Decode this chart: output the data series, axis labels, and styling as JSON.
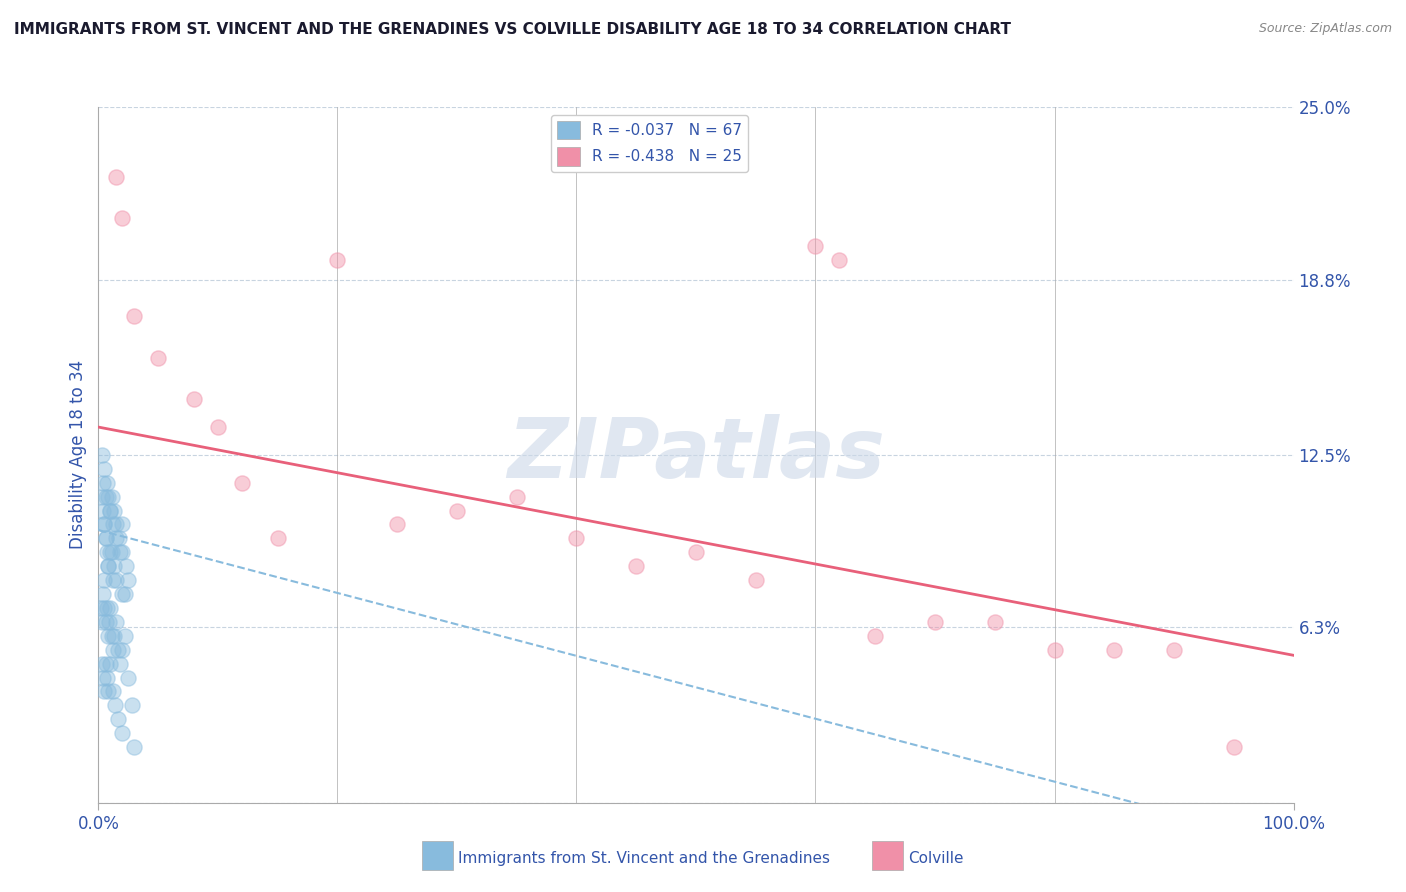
{
  "title": "IMMIGRANTS FROM ST. VINCENT AND THE GRENADINES VS COLVILLE DISABILITY AGE 18 TO 34 CORRELATION CHART",
  "source_text": "Source: ZipAtlas.com",
  "ylabel": "Disability Age 18 to 34",
  "xlim": [
    0.0,
    100.0
  ],
  "ylim": [
    0.0,
    25.0
  ],
  "yticks": [
    0.0,
    6.3,
    12.5,
    18.8,
    25.0
  ],
  "ytick_labels": [
    "",
    "6.3%",
    "12.5%",
    "18.8%",
    "25.0%"
  ],
  "xticks": [
    0.0,
    100.0
  ],
  "xtick_labels": [
    "0.0%",
    "100.0%"
  ],
  "watermark_text": "ZIPatlas",
  "legend_R1": "R = -0.037",
  "legend_N1": "N = 67",
  "legend_R2": "R = -0.438",
  "legend_N2": "N = 25",
  "blue_scatter_x": [
    0.5,
    0.6,
    0.8,
    1.0,
    1.2,
    1.5,
    2.0,
    2.2,
    2.5,
    0.3,
    0.4,
    0.5,
    0.6,
    0.7,
    0.8,
    1.0,
    1.1,
    1.3,
    1.5,
    1.8,
    2.0,
    0.2,
    0.3,
    0.4,
    0.5,
    0.5,
    0.6,
    0.7,
    0.8,
    0.9,
    1.0,
    1.1,
    1.2,
    1.3,
    1.5,
    1.6,
    1.8,
    2.0,
    2.2,
    2.5,
    0.3,
    0.4,
    0.5,
    0.6,
    0.7,
    0.8,
    1.0,
    1.2,
    1.4,
    1.6,
    2.0,
    0.3,
    0.4,
    0.5,
    0.6,
    0.7,
    0.8,
    1.0,
    1.1,
    1.2,
    1.3,
    1.5,
    1.7,
    2.0,
    2.3,
    2.8,
    3.0
  ],
  "blue_scatter_y": [
    10.0,
    9.5,
    8.5,
    9.0,
    8.0,
    9.5,
    10.0,
    7.5,
    8.0,
    11.0,
    10.5,
    10.0,
    9.5,
    9.0,
    8.5,
    10.5,
    9.0,
    8.5,
    8.0,
    9.0,
    7.5,
    7.0,
    6.5,
    7.5,
    8.0,
    7.0,
    6.5,
    7.0,
    6.0,
    6.5,
    7.0,
    6.0,
    5.5,
    6.0,
    6.5,
    5.5,
    5.0,
    5.5,
    6.0,
    4.5,
    5.0,
    4.5,
    4.0,
    5.0,
    4.5,
    4.0,
    5.0,
    4.0,
    3.5,
    3.0,
    2.5,
    12.5,
    11.5,
    12.0,
    11.0,
    11.5,
    11.0,
    10.5,
    11.0,
    10.0,
    10.5,
    10.0,
    9.5,
    9.0,
    8.5,
    3.5,
    2.0
  ],
  "pink_scatter_x": [
    1.5,
    2.0,
    3.0,
    5.0,
    8.0,
    10.0,
    12.0,
    15.0,
    20.0,
    25.0,
    30.0,
    35.0,
    40.0,
    45.0,
    50.0,
    55.0,
    60.0,
    65.0,
    70.0,
    75.0,
    80.0,
    85.0,
    90.0,
    95.0,
    62.0
  ],
  "pink_scatter_y": [
    22.5,
    21.0,
    17.5,
    16.0,
    14.5,
    13.5,
    11.5,
    9.5,
    19.5,
    10.0,
    10.5,
    11.0,
    9.5,
    8.5,
    9.0,
    8.0,
    20.0,
    6.0,
    6.5,
    6.5,
    5.5,
    5.5,
    5.5,
    2.0,
    19.5
  ],
  "blue_line_y_start": 9.8,
  "blue_line_y_end": -1.5,
  "pink_line_y_start": 13.5,
  "pink_line_y_end": 5.3,
  "scatter_size": 120,
  "scatter_alpha": 0.45,
  "blue_color": "#88bbdd",
  "pink_color": "#f090a8",
  "blue_line_color": "#88bbdd",
  "pink_line_color": "#e8607a",
  "grid_color": "#c8d4e0",
  "background_color": "#ffffff",
  "title_color": "#1a1a2e",
  "axis_label_color": "#3355aa",
  "tick_color": "#3355aa",
  "legend_text_color": "#3355aa",
  "bottom_legend_text_color": "#3355aa",
  "watermark_color": "#ccd8e8",
  "watermark_alpha": 0.6,
  "bottom_legend_blue_label": "Immigrants from St. Vincent and the Grenadines",
  "bottom_legend_pink_label": "Colville"
}
